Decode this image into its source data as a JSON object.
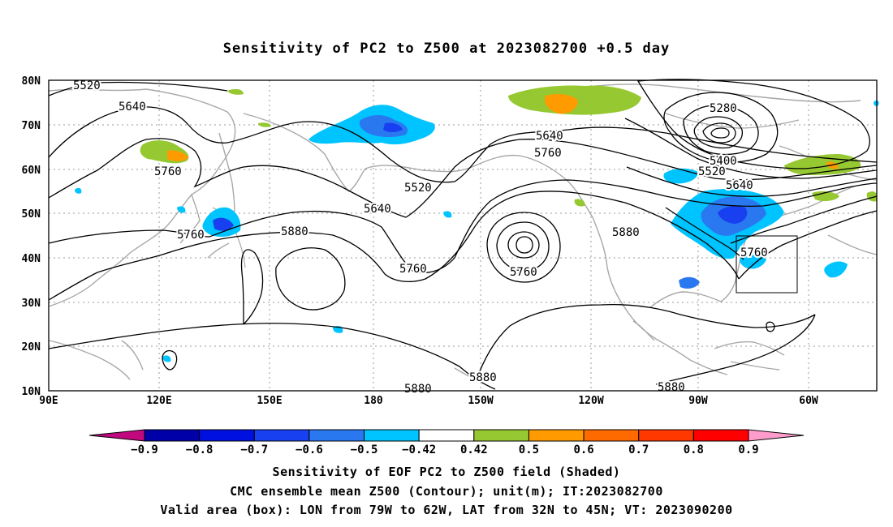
{
  "title": "Sensitivity of PC2 to Z500 at 2023082700 +0.5 day",
  "lat_labels": [
    "80N",
    "70N",
    "60N",
    "50N",
    "40N",
    "30N",
    "20N",
    "10N"
  ],
  "lon_labels": [
    "90E",
    "120E",
    "150E",
    "180",
    "150W",
    "120W",
    "90W",
    "60W"
  ],
  "contour_labels": {
    "c5520a": "5520",
    "c5640a": "5640",
    "c5760a": "5760",
    "c5520b": "5520",
    "c5640b": "5640",
    "c5760b": "5760",
    "c5760c": "5760",
    "c5880a": "5880",
    "c5640c": "5640",
    "c5760d": "5760",
    "c5880b": "5880",
    "c5280": "5280",
    "c5400": "5400",
    "c5520c": "5520",
    "c5640d": "5640",
    "c5760e": "5760",
    "c5880c": "5880",
    "c5880d": "5880",
    "c5880e": "5880"
  },
  "colorbar": {
    "labels": [
      "−0.9",
      "−0.8",
      "−0.7",
      "−0.6",
      "−0.5",
      "−0.42",
      "0.42",
      "0.5",
      "0.6",
      "0.7",
      "0.8",
      "0.9"
    ],
    "colors": [
      "#0000a8",
      "#0010e0",
      "#1840f0",
      "#2a78f0",
      "#00c4ff",
      "#ffffff",
      "#96c832",
      "#ff9a00",
      "#ff6a00",
      "#ff3800",
      "#ff0000"
    ],
    "low_arrow_color": "#c0087f",
    "high_arrow_color": "#ff9ccc"
  },
  "captions": {
    "line1": "Sensitivity of EOF PC2 to Z500 field (Shaded)",
    "line2": "CMC ensemble mean Z500 (Contour); unit(m); IT:2023082700",
    "line3": "Valid area (box): LON from 79W to 62W, LAT from 32N to 45N; VT: 2023090200"
  },
  "valid_box": {
    "lon_west": -79,
    "lon_east": -62,
    "lat_south": 32,
    "lat_north": 45
  },
  "map_extent": {
    "lon_min": 90,
    "lon_max": 315,
    "lat_min": 10,
    "lat_max": 80
  }
}
